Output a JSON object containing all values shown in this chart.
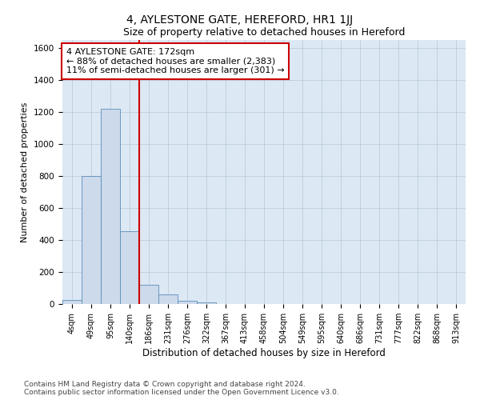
{
  "title": "4, AYLESTONE GATE, HEREFORD, HR1 1JJ",
  "subtitle": "Size of property relative to detached houses in Hereford",
  "xlabel": "Distribution of detached houses by size in Hereford",
  "ylabel": "Number of detached properties",
  "bar_labels": [
    "4sqm",
    "49sqm",
    "95sqm",
    "140sqm",
    "186sqm",
    "231sqm",
    "276sqm",
    "322sqm",
    "367sqm",
    "413sqm",
    "458sqm",
    "504sqm",
    "549sqm",
    "595sqm",
    "640sqm",
    "686sqm",
    "731sqm",
    "777sqm",
    "822sqm",
    "868sqm",
    "913sqm"
  ],
  "bar_values": [
    25,
    800,
    1220,
    455,
    120,
    58,
    20,
    10,
    0,
    0,
    0,
    0,
    0,
    0,
    0,
    0,
    0,
    0,
    0,
    0,
    0
  ],
  "bar_color": "#ccdaeb",
  "bar_edge_color": "#5b8db8",
  "vline_x": 3.5,
  "annotation_text": "4 AYLESTONE GATE: 172sqm\n← 88% of detached houses are smaller (2,383)\n11% of semi-detached houses are larger (301) →",
  "annotation_box_color": "white",
  "annotation_box_edge_color": "#cc0000",
  "vline_color": "#cc0000",
  "ylim": [
    0,
    1650
  ],
  "yticks": [
    0,
    200,
    400,
    600,
    800,
    1000,
    1200,
    1400,
    1600
  ],
  "grid_color": "#b8c8d8",
  "bg_color": "#dce8f4",
  "footer_text": "Contains HM Land Registry data © Crown copyright and database right 2024.\nContains public sector information licensed under the Open Government Licence v3.0.",
  "title_fontsize": 10,
  "subtitle_fontsize": 9,
  "xlabel_fontsize": 8.5,
  "ylabel_fontsize": 8,
  "tick_fontsize": 7,
  "annotation_fontsize": 8,
  "footer_fontsize": 6.5
}
